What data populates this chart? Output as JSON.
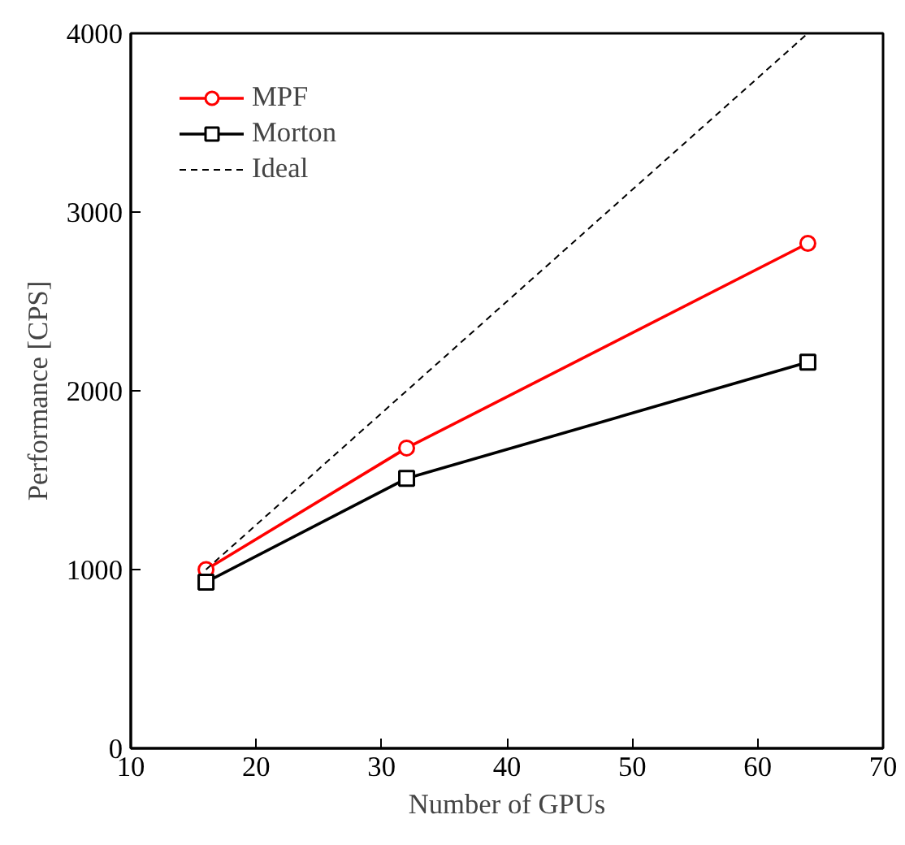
{
  "chart_data": {
    "type": "line",
    "xlabel": "Number of GPUs",
    "ylabel": "Performance [CPS]",
    "xlim": [
      10,
      70
    ],
    "xticks": [
      10,
      20,
      30,
      40,
      50,
      60,
      70
    ],
    "ylim": [
      0,
      4000
    ],
    "yticks": [
      0,
      1000,
      2000,
      3000,
      4000
    ],
    "grid": false,
    "legend": "top left",
    "series": [
      {
        "name": "MPF",
        "color": "#ff0000",
        "x": [
          16,
          32,
          64
        ],
        "values": [
          1000,
          1680,
          2825
        ],
        "marker": "circle",
        "line_style": "solid"
      },
      {
        "name": "Morton",
        "color": "#000000",
        "x": [
          16,
          32,
          64
        ],
        "values": [
          930,
          1510,
          2160
        ],
        "marker": "square",
        "line_style": "solid"
      },
      {
        "name": "Ideal",
        "color": "#000000",
        "x": [
          16,
          64
        ],
        "values": [
          1000,
          4000
        ],
        "marker": "none",
        "line_style": "dashed"
      }
    ]
  }
}
